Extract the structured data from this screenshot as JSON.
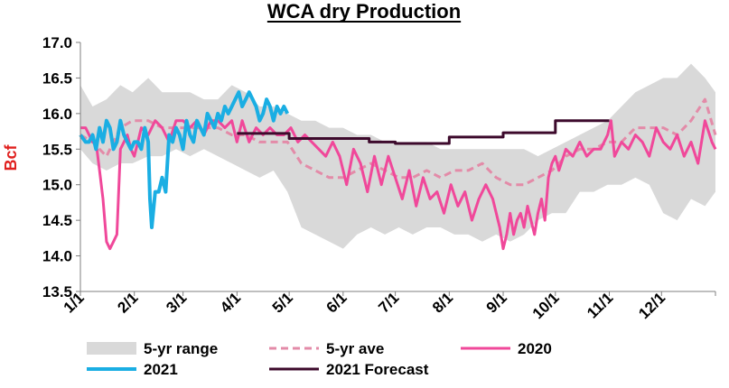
{
  "chart_data": {
    "type": "line",
    "title": "WCA dry Production",
    "ylabel": "Bcf",
    "ylim": [
      13.5,
      17.0
    ],
    "yticks": [
      "17.0",
      "16.5",
      "16.0",
      "15.5",
      "15.0",
      "14.5",
      "14.0",
      "13.5"
    ],
    "xlim": [
      1,
      366
    ],
    "xtick_labels": [
      "1/1",
      "2/1",
      "3/1",
      "4/1",
      "5/1",
      "6/1",
      "7/1",
      "8/1",
      "9/1",
      "10/1",
      "11/1",
      "12/1"
    ],
    "xtick_days": [
      1,
      32,
      60,
      91,
      121,
      152,
      182,
      213,
      244,
      274,
      305,
      335
    ],
    "grid": false,
    "legend_position": "bottom",
    "colors": {
      "range": "#d9d9d9",
      "ave": "#e38ba8",
      "y2020": "#f0489a",
      "y2021": "#1aaee3",
      "forecast": "#3d0a2c"
    },
    "series": [
      {
        "name": "5-yr range",
        "kind": "band",
        "x": [
          1,
          8,
          16,
          24,
          31,
          40,
          48,
          56,
          64,
          72,
          80,
          88,
          96,
          104,
          112,
          120,
          128,
          136,
          144,
          152,
          160,
          168,
          176,
          184,
          192,
          200,
          208,
          216,
          224,
          232,
          240,
          248,
          256,
          264,
          272,
          280,
          288,
          296,
          304,
          312,
          320,
          328,
          336,
          344,
          352,
          360,
          366
        ],
        "low": [
          15.5,
          15.3,
          15.2,
          15.3,
          15.3,
          15.4,
          15.4,
          15.5,
          15.4,
          15.5,
          15.4,
          15.3,
          15.2,
          15.1,
          15.2,
          14.9,
          14.4,
          14.3,
          14.2,
          14.1,
          14.3,
          14.4,
          14.3,
          14.4,
          14.3,
          14.4,
          14.4,
          14.3,
          14.3,
          14.2,
          14.3,
          14.2,
          14.3,
          14.5,
          14.6,
          14.6,
          14.9,
          14.9,
          15.0,
          15.0,
          15.1,
          15.0,
          14.6,
          14.5,
          14.8,
          14.7,
          14.9
        ],
        "high": [
          16.4,
          16.1,
          16.2,
          16.4,
          16.3,
          16.5,
          16.3,
          16.3,
          16.3,
          16.2,
          16.2,
          16.4,
          16.3,
          16.1,
          16.1,
          16.0,
          15.9,
          15.9,
          15.8,
          15.8,
          15.7,
          15.7,
          15.6,
          15.6,
          15.6,
          15.6,
          15.5,
          15.5,
          15.5,
          15.5,
          15.5,
          15.5,
          15.5,
          15.4,
          15.5,
          15.6,
          15.7,
          15.8,
          15.9,
          16.1,
          16.3,
          16.4,
          16.5,
          16.5,
          16.7,
          16.5,
          16.3
        ]
      },
      {
        "name": "5-yr ave",
        "kind": "dashed",
        "x": [
          1,
          8,
          16,
          24,
          31,
          40,
          48,
          56,
          64,
          72,
          80,
          88,
          96,
          104,
          112,
          120,
          128,
          136,
          144,
          152,
          160,
          168,
          176,
          184,
          192,
          200,
          208,
          216,
          224,
          232,
          240,
          248,
          256,
          264,
          272,
          280,
          288,
          296,
          304,
          312,
          320,
          328,
          336,
          344,
          352,
          360,
          366
        ],
        "y": [
          15.7,
          15.6,
          15.4,
          15.8,
          15.9,
          15.9,
          15.8,
          15.8,
          15.8,
          15.8,
          15.8,
          15.7,
          15.7,
          15.6,
          15.6,
          15.6,
          15.3,
          15.2,
          15.1,
          15.1,
          15.2,
          15.3,
          15.2,
          15.1,
          15.1,
          15.2,
          15.1,
          15.2,
          15.2,
          15.3,
          15.1,
          15.0,
          15.0,
          15.1,
          15.2,
          15.4,
          15.5,
          15.5,
          15.6,
          15.6,
          15.8,
          15.8,
          15.8,
          15.7,
          15.9,
          16.2,
          15.7
        ]
      },
      {
        "name": "2020",
        "kind": "line",
        "x": [
          1,
          4,
          8,
          10,
          12,
          14,
          16,
          18,
          20,
          22,
          24,
          26,
          28,
          30,
          32,
          34,
          36,
          40,
          44,
          48,
          52,
          56,
          60,
          64,
          68,
          72,
          76,
          80,
          84,
          88,
          91,
          94,
          98,
          102,
          106,
          110,
          114,
          118,
          122,
          126,
          130,
          134,
          138,
          142,
          146,
          150,
          154,
          158,
          162,
          166,
          170,
          174,
          178,
          182,
          186,
          190,
          194,
          198,
          202,
          206,
          210,
          214,
          218,
          222,
          226,
          230,
          234,
          238,
          242,
          244,
          246,
          248,
          250,
          252,
          254,
          256,
          258,
          260,
          262,
          264,
          266,
          268,
          270,
          272,
          274,
          276,
          280,
          284,
          288,
          292,
          296,
          300,
          304,
          306,
          308,
          312,
          316,
          320,
          324,
          328,
          332,
          336,
          340,
          344,
          348,
          352,
          356,
          360,
          364,
          366
        ],
        "y": [
          15.8,
          15.8,
          15.6,
          15.6,
          15.2,
          14.8,
          14.2,
          14.1,
          14.2,
          14.3,
          15.5,
          15.6,
          15.7,
          15.5,
          15.4,
          15.6,
          15.8,
          15.7,
          15.9,
          15.8,
          15.6,
          15.9,
          15.9,
          15.8,
          15.9,
          15.7,
          15.9,
          15.9,
          15.8,
          15.9,
          15.6,
          15.9,
          15.6,
          15.8,
          15.7,
          15.8,
          15.7,
          15.7,
          15.8,
          15.6,
          15.7,
          15.6,
          15.5,
          15.4,
          15.6,
          15.4,
          15.0,
          15.5,
          15.3,
          14.9,
          15.4,
          15.0,
          15.4,
          15.1,
          14.8,
          15.2,
          14.7,
          15.1,
          14.8,
          14.9,
          14.6,
          15.0,
          14.7,
          14.9,
          14.5,
          14.8,
          15.0,
          14.8,
          14.4,
          14.1,
          14.3,
          14.6,
          14.3,
          14.5,
          14.6,
          14.4,
          14.7,
          14.5,
          14.3,
          14.6,
          14.8,
          14.5,
          15.1,
          15.3,
          15.4,
          15.2,
          15.5,
          15.4,
          15.6,
          15.4,
          15.5,
          15.5,
          15.7,
          15.9,
          15.4,
          15.6,
          15.5,
          15.7,
          15.6,
          15.4,
          15.8,
          15.6,
          15.5,
          15.7,
          15.4,
          15.6,
          15.3,
          15.9,
          15.6,
          15.5
        ],
        "width": 3
      },
      {
        "name": "2021",
        "kind": "line",
        "x": [
          1,
          4,
          6,
          8,
          10,
          12,
          14,
          16,
          18,
          20,
          22,
          24,
          26,
          28,
          30,
          32,
          34,
          36,
          38,
          40,
          41,
          42,
          44,
          46,
          48,
          50,
          52,
          54,
          56,
          58,
          60,
          62,
          64,
          66,
          68,
          70,
          72,
          74,
          76,
          78,
          80,
          82,
          84,
          86,
          88,
          90,
          92,
          94,
          96,
          98,
          100,
          102,
          104,
          106,
          108,
          110,
          112,
          114,
          116,
          118,
          120
        ],
        "y": [
          15.7,
          15.6,
          15.6,
          15.7,
          15.5,
          15.8,
          15.6,
          15.9,
          15.8,
          15.5,
          15.6,
          15.9,
          15.7,
          15.6,
          15.5,
          15.6,
          15.6,
          15.5,
          15.8,
          15.6,
          14.8,
          14.4,
          14.9,
          14.9,
          15.1,
          14.9,
          15.7,
          15.6,
          15.8,
          15.7,
          15.5,
          15.9,
          15.7,
          15.6,
          15.9,
          15.8,
          15.7,
          16.0,
          15.9,
          15.8,
          16.0,
          15.9,
          16.1,
          16.0,
          16.1,
          16.2,
          16.3,
          16.1,
          16.2,
          16.3,
          16.2,
          16.1,
          15.9,
          16.0,
          16.2,
          16.1,
          15.9,
          16.1,
          16.0,
          16.1,
          16.0
        ],
        "width": 4
      },
      {
        "name": "2021 Forecast",
        "kind": "step",
        "x": [
          91,
          121,
          121,
          152,
          152,
          167,
          167,
          182,
          182,
          213,
          213,
          244,
          244,
          274,
          274,
          305
        ],
        "y": [
          15.72,
          15.72,
          15.65,
          15.65,
          15.65,
          15.65,
          15.6,
          15.6,
          15.58,
          15.58,
          15.67,
          15.67,
          15.73,
          15.73,
          15.9,
          15.9
        ],
        "width": 3
      }
    ]
  }
}
